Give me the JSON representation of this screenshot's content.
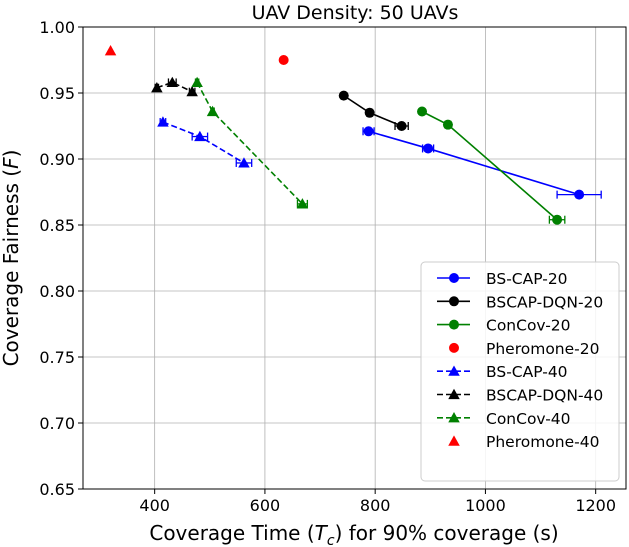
{
  "chart_data": {
    "type": "scatter",
    "title": "UAV Density: 50 UAVs",
    "xlabel_parts": [
      "Coverage Time (",
      "T",
      "c",
      ") for 90% coverage (s)"
    ],
    "ylabel_parts": [
      "Coverage Fairness (",
      "F",
      ")"
    ],
    "xlim": [
      270,
      1255
    ],
    "ylim": [
      0.65,
      1.0
    ],
    "xticks": [
      400,
      600,
      800,
      1000,
      1200
    ],
    "yticks": [
      0.65,
      0.7,
      0.75,
      0.8,
      0.85,
      0.9,
      0.95,
      1.0
    ],
    "ytick_labels": [
      "0.65",
      "0.70",
      "0.75",
      "0.80",
      "0.85",
      "0.90",
      "0.95",
      "1.00"
    ],
    "grid": true,
    "legend_position": "lower-right",
    "series": [
      {
        "name": "BS-CAP-20",
        "color": "#0000ff",
        "marker": "circle",
        "linestyle": "solid",
        "x": [
          788,
          896,
          1170
        ],
        "y": [
          0.921,
          0.908,
          0.873
        ],
        "xerr": [
          10,
          10,
          40
        ]
      },
      {
        "name": "BSCAP-DQN-20",
        "color": "#000000",
        "marker": "circle",
        "linestyle": "solid",
        "x": [
          743,
          790,
          848
        ],
        "y": [
          0.948,
          0.935,
          0.925
        ],
        "xerr": [
          4,
          5,
          12
        ]
      },
      {
        "name": "ConCov-20",
        "color": "#008000",
        "marker": "circle",
        "linestyle": "solid",
        "x": [
          885,
          932,
          1130
        ],
        "y": [
          0.936,
          0.926,
          0.854
        ],
        "xerr": [
          4,
          5,
          14
        ]
      },
      {
        "name": "Pheromone-20",
        "color": "#ff0000",
        "marker": "circle",
        "linestyle": "none",
        "x": [
          634
        ],
        "y": [
          0.975
        ],
        "xerr": [
          0
        ]
      },
      {
        "name": "BS-CAP-40",
        "color": "#0000ff",
        "marker": "triangle",
        "linestyle": "dashed",
        "x": [
          415,
          482,
          562
        ],
        "y": [
          0.928,
          0.917,
          0.897
        ],
        "xerr": [
          5,
          14,
          14
        ]
      },
      {
        "name": "BSCAP-DQN-40",
        "color": "#000000",
        "marker": "triangle",
        "linestyle": "dashed",
        "x": [
          404,
          432,
          468
        ],
        "y": [
          0.954,
          0.958,
          0.951
        ],
        "xerr": [
          3,
          7,
          5
        ]
      },
      {
        "name": "ConCov-40",
        "color": "#008000",
        "marker": "triangle",
        "linestyle": "dashed",
        "x": [
          477,
          505,
          668
        ],
        "y": [
          0.958,
          0.936,
          0.866
        ],
        "xerr": [
          3,
          3,
          9
        ]
      },
      {
        "name": "Pheromone-40",
        "color": "#ff0000",
        "marker": "triangle",
        "linestyle": "none",
        "x": [
          320
        ],
        "y": [
          0.982
        ],
        "xerr": [
          0
        ]
      }
    ]
  }
}
